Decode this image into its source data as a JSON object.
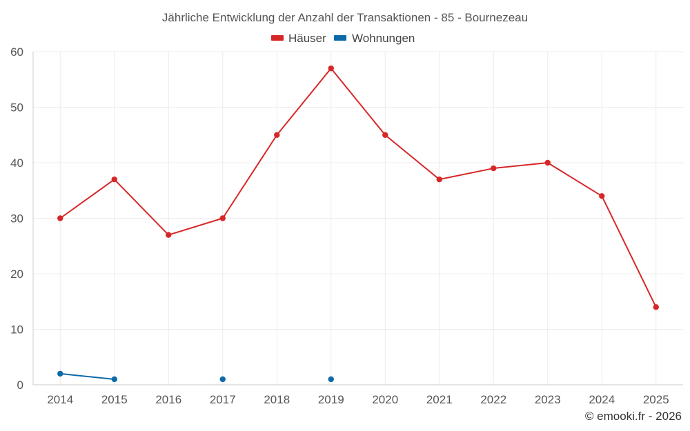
{
  "chart_data": {
    "type": "line",
    "title": "Jährliche Entwicklung der Anzahl der Transaktionen - 85 - Bournezeau",
    "xlabel": "",
    "ylabel": "",
    "ylim": [
      0,
      60
    ],
    "yticks": [
      "0",
      "10",
      "20",
      "30",
      "40",
      "50",
      "60"
    ],
    "categories": [
      "2014",
      "2015",
      "2016",
      "2017",
      "2018",
      "2019",
      "2020",
      "2021",
      "2022",
      "2023",
      "2024",
      "2025"
    ],
    "legend_position": "top-center",
    "grid": true,
    "series": [
      {
        "name": "Häuser",
        "color": "#d62728",
        "values": [
          30,
          37,
          27,
          30,
          45,
          57,
          45,
          37,
          39,
          40,
          34,
          14
        ]
      },
      {
        "name": "Wohnungen",
        "color": "#0d6aa8",
        "values": [
          2,
          1,
          null,
          1,
          null,
          1,
          null,
          null,
          null,
          null,
          null,
          null
        ]
      }
    ]
  },
  "credit": "© emooki.fr - 2026"
}
